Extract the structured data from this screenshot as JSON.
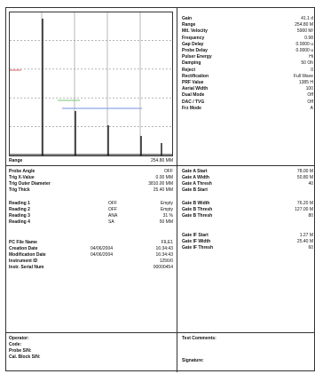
{
  "scan_params": [
    {
      "label": "Gain",
      "value": "41.1 d"
    },
    {
      "label": "Range",
      "value": "254.80 M"
    },
    {
      "label": "Mtl. Velocity",
      "value": "5900 M/"
    },
    {
      "label": "Frequency",
      "value": "0.98"
    },
    {
      "label": "Gap Delay",
      "value": "0.0000 u"
    },
    {
      "label": "Probe Delay",
      "value": "0.0000 u"
    },
    {
      "label": "Pulser Energy",
      "value": "Hi"
    },
    {
      "label": "Damping",
      "value": "50 Oh"
    },
    {
      "label": "Reject",
      "value": "0"
    },
    {
      "label": "Rectification",
      "value": "Full Wave"
    },
    {
      "label": "PRF Value",
      "value": "1385 H"
    },
    {
      "label": "Aerial Width",
      "value": "100"
    },
    {
      "label": "Dual Mode",
      "value": "Off"
    },
    {
      "label": "DAC / TVG",
      "value": "Off"
    },
    {
      "label": "Frz Mode",
      "value": "A"
    }
  ],
  "range": {
    "label": "Range",
    "value": "254.80 MM"
  },
  "probe": [
    {
      "label": "Probe Angle",
      "value": "OFF"
    },
    {
      "label": "Trig X-Value",
      "value": "0.00 MM"
    },
    {
      "label": "Trig Outer Diameter",
      "value": "3810.00 MM"
    },
    {
      "label": "Trig Thick",
      "value": "25.40 MM"
    }
  ],
  "readings": [
    {
      "label": "Reading 1",
      "mode": "OFF",
      "value": "Empty"
    },
    {
      "label": "Reading 2",
      "mode": "OFF",
      "value": "Empty"
    },
    {
      "label": "Reading 3",
      "mode": "ANA",
      "value": "31 %"
    },
    {
      "label": "Reading 4",
      "mode": "SA",
      "value": "50 MM"
    }
  ],
  "file": [
    {
      "label": "PC File Name",
      "value": "FILE1",
      "date": ""
    },
    {
      "label": "Creation Date",
      "value": "16:34:43",
      "date": "04/06/2004"
    },
    {
      "label": "Modification Date",
      "value": "16:34:43",
      "date": "04/06/2004"
    },
    {
      "label": "Instrument ID",
      "value": "1256/0",
      "date": ""
    },
    {
      "label": "Instr. Serial Num",
      "value": "00000454",
      "date": ""
    }
  ],
  "gate_a": [
    {
      "label": "Gate A Start",
      "value": "78.00 M"
    },
    {
      "label": "Gate A Width",
      "value": "50.80 M"
    },
    {
      "label": "Gate A Thresh",
      "value": "40"
    },
    {
      "label": "Gate B Start",
      "value": ""
    }
  ],
  "gate_b": [
    {
      "label": "Gate B Width",
      "value": "76.20 M"
    },
    {
      "label": "Gate B Thresh",
      "value": "127.00 M"
    },
    {
      "label": "Gate B Thresh",
      "value": "80"
    }
  ],
  "gate_if": [
    {
      "label": "Gate IF Start",
      "value": "1.27 M"
    },
    {
      "label": "Gate IF Width",
      "value": "25.40 M"
    },
    {
      "label": "Gate IF Thresh",
      "value": "60"
    }
  ],
  "footer": {
    "left": [
      "Operator:",
      "Code:",
      "Probe S/N:",
      "Cal. Block S/N:"
    ],
    "test_comments": "Test Comments:",
    "signature": "Signature:"
  },
  "colors": {
    "gate_a": "#e07a7a",
    "gate_b": "#8fd08f",
    "gate_if": "#8fa8e8"
  }
}
